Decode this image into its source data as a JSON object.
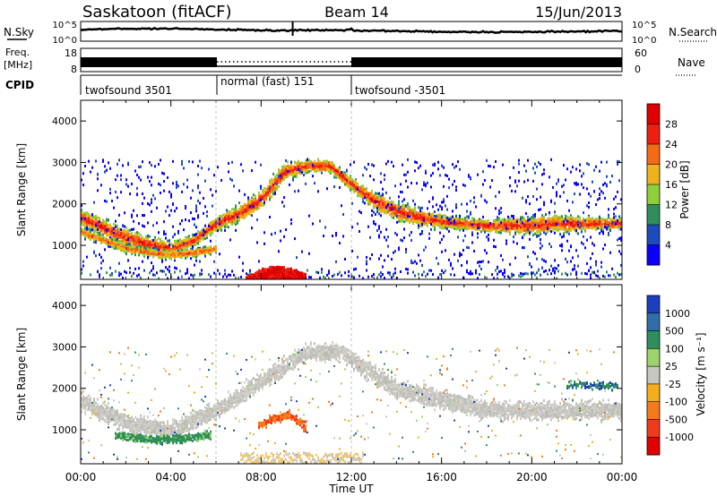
{
  "header": {
    "station": "Saskatoon (fitACF)",
    "beam": "Beam 14",
    "date": "15/Jun/2013"
  },
  "top_panels": {
    "nsky_label": "N.Sky",
    "nsky_top_tick": "10^5",
    "nsky_bottom_tick": "10^0",
    "nsearch_label": "N.Search",
    "nsearch_top_tick": "10^5",
    "nsearch_bottom_tick": "10^0",
    "freq_label_1": "Freq.",
    "freq_label_2": "[MHz]",
    "freq_top_tick": "18",
    "freq_bottom_tick": "8",
    "nave_label": "Nave",
    "nave_top_tick": "60",
    "nave_bottom_tick": "0",
    "cpid_label": "CPID"
  },
  "cpid_segments": [
    {
      "name": "twofsound 3501",
      "start_hour": 0,
      "end_hour": 6
    },
    {
      "name": "normal (fast) 151",
      "start_hour": 6,
      "end_hour": 12
    },
    {
      "name": "twofsound -3501",
      "start_hour": 12,
      "end_hour": 24
    }
  ],
  "chart_data": [
    {
      "type": "heatmap",
      "parameter": "power",
      "ylabel": "Slant Range [km]",
      "ylim": [
        180,
        4500
      ],
      "yticks": [
        1000,
        2000,
        3000,
        4000
      ],
      "xlim": [
        0,
        24
      ],
      "colorbar": {
        "label": "Power [dB]",
        "tick_labels": [
          "4",
          "8",
          "12",
          "16",
          "20",
          "24",
          "28"
        ],
        "colors": [
          "#0b00ff",
          "#1d4bbd",
          "#2f8f5c",
          "#8fcf3a",
          "#f0b21c",
          "#f76a14",
          "#ee1e10",
          "#e10000"
        ]
      },
      "echo_bands": [
        {
          "desc": "ground scatter band",
          "x": [
            0,
            1,
            2,
            3,
            4,
            5,
            6,
            7,
            8,
            9,
            10,
            11,
            12,
            13,
            14,
            15,
            16,
            17,
            18,
            19,
            20,
            21,
            22,
            23,
            24
          ],
          "y": [
            1700,
            1450,
            1200,
            1050,
            950,
            1150,
            1550,
            1800,
            2150,
            2800,
            2950,
            2950,
            2500,
            2100,
            1850,
            1700,
            1600,
            1550,
            1500,
            1500,
            1500,
            1550,
            1550,
            1550,
            1550
          ]
        },
        {
          "desc": "lower band",
          "x": [
            0,
            1,
            2,
            3,
            4,
            5,
            6
          ],
          "y": [
            1350,
            1150,
            950,
            850,
            800,
            850,
            950
          ]
        },
        {
          "desc": "near-range high power",
          "x": [
            7.3,
            7.6,
            8,
            8.5,
            9,
            9.5,
            9.9
          ],
          "y": [
            250,
            350,
            450,
            500,
            480,
            420,
            350
          ]
        }
      ]
    },
    {
      "type": "heatmap",
      "parameter": "velocity",
      "ylabel": "Slant Range [km]",
      "xlabel": "Time UT",
      "ylim": [
        180,
        4500
      ],
      "yticks": [
        1000,
        2000,
        3000,
        4000
      ],
      "xlim": [
        0,
        24
      ],
      "xtick_labels": [
        "00:00",
        "04:00",
        "08:00",
        "12:00",
        "16:00",
        "20:00",
        "00:00"
      ],
      "colorbar": {
        "label": "Velocity [m s⁻¹]",
        "tick_labels": [
          "1000",
          "500",
          "100",
          "25",
          "-25",
          "-100",
          "-500",
          "-1000"
        ],
        "colors": [
          "#1c3fbf",
          "#2f6fa8",
          "#2f8f5c",
          "#9cd36a",
          "#c8c6c0",
          "#f4ad1c",
          "#f67a18",
          "#f2391a",
          "#e00000"
        ]
      },
      "echo_bands": [
        {
          "desc": "grey ground scatter",
          "x": [
            0,
            2,
            4,
            6,
            8,
            10,
            11.5,
            14,
            18,
            22,
            24
          ],
          "y": [
            1700,
            1200,
            1000,
            1500,
            2200,
            2900,
            2900,
            2000,
            1500,
            1500,
            1500
          ]
        },
        {
          "desc": "negative-velocity irregularities",
          "x": [
            7.8,
            8.5,
            9.2,
            9.9
          ],
          "y": [
            1100,
            1300,
            1400,
            1100
          ]
        },
        {
          "desc": "positive-velocity patch",
          "x": [
            1.5,
            3,
            4.5,
            5.5
          ],
          "y": [
            900,
            800,
            800,
            900
          ]
        }
      ]
    }
  ]
}
